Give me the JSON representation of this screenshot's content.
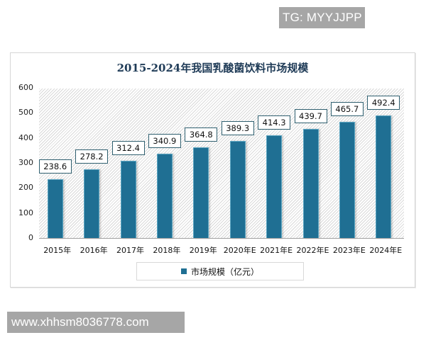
{
  "watermarks": {
    "top": "TG: MYYJJPP",
    "bottom": "www.xhhsm8036778.com"
  },
  "colors": {
    "bar": "#1f6f93",
    "title": "#1f3b57"
  },
  "chart": {
    "title": "2015-2024年我国乳酸菌饮料市场规模",
    "legend_label": "市场规模（亿元）",
    "y_ticks": [
      "600",
      "500",
      "400",
      "300",
      "200",
      "100",
      "0"
    ],
    "x_labels": [
      "2015年",
      "2016年",
      "2017年",
      "2018年",
      "2019年",
      "2020年E",
      "2021年E",
      "2022年E",
      "2023年E",
      "2024年E"
    ],
    "value_labels": [
      "238.6",
      "278.2",
      "312.4",
      "340.9",
      "364.8",
      "389.3",
      "414.3",
      "439.7",
      "465.7",
      "492.4"
    ]
  },
  "chart_data": {
    "type": "bar",
    "title": "2015-2024年我国乳酸菌饮料市场规模",
    "categories": [
      "2015年",
      "2016年",
      "2017年",
      "2018年",
      "2019年",
      "2020年E",
      "2021年E",
      "2022年E",
      "2023年E",
      "2024年E"
    ],
    "series": [
      {
        "name": "市场规模（亿元）",
        "values": [
          238.6,
          278.2,
          312.4,
          340.9,
          364.8,
          389.3,
          414.3,
          439.7,
          465.7,
          492.4
        ]
      }
    ],
    "xlabel": "",
    "ylabel": "",
    "ylim": [
      0,
      600
    ],
    "yticks": [
      0,
      100,
      200,
      300,
      400,
      500,
      600
    ],
    "grid": false,
    "legend_position": "bottom",
    "data_labels": true
  }
}
